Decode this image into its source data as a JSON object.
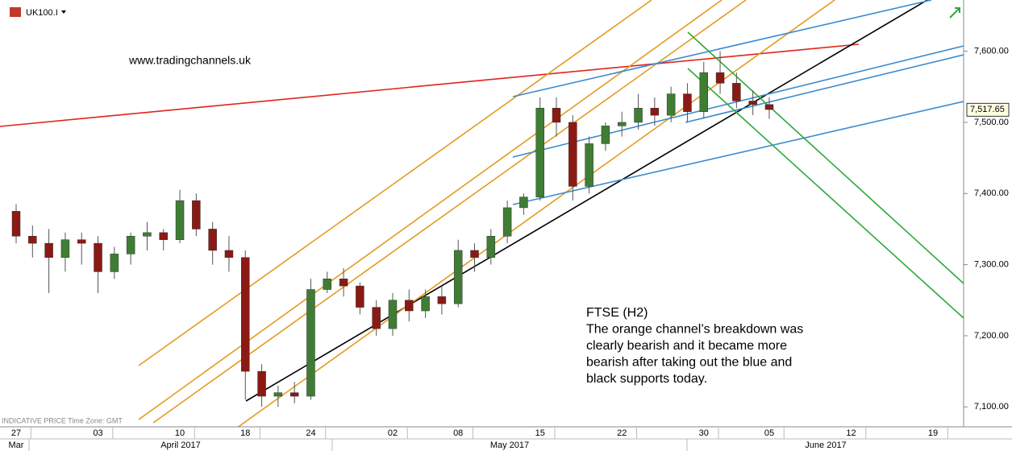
{
  "chart_data": {
    "type": "candlestick",
    "symbol": "UK100.I",
    "watermark": "www.tradingchannels.uk",
    "footer_note": "INDICATIVE PRICE   Time Zone: GMT",
    "annotation": [
      "FTSE (H2)",
      "The orange channel’s breakdown was",
      "clearly bearish and it became more",
      "bearish after taking out the blue and",
      "black supports today."
    ],
    "categories": [
      "27",
      null,
      null,
      null,
      null,
      "03",
      null,
      null,
      null,
      null,
      "10",
      null,
      null,
      null,
      "18",
      null,
      null,
      null,
      "24",
      null,
      null,
      null,
      null,
      "02",
      null,
      null,
      null,
      "08",
      null,
      null,
      null,
      null,
      "15",
      null,
      null,
      null,
      null,
      "22",
      null,
      null,
      null,
      null,
      "30",
      null,
      null,
      null,
      "05",
      null,
      null,
      null,
      null,
      "12",
      null,
      null,
      null,
      null,
      "19",
      null,
      null,
      null
    ],
    "month_labels": [
      "Mar",
      "April 2017",
      "May 2017",
      "June 2017"
    ],
    "open": [
      7375,
      7340,
      7330,
      7310,
      7335,
      7330,
      7290,
      7315,
      7340,
      7345,
      7335,
      7390,
      7350,
      7320,
      7310,
      7150,
      7115,
      7120,
      7115,
      7265,
      7280,
      7270,
      7240,
      7210,
      7250,
      7235,
      7255,
      7245,
      7320,
      7310,
      7340,
      7380,
      7395,
      7520,
      7500,
      7410,
      7470,
      7495,
      7500,
      7520,
      7510,
      7540,
      7515,
      7570,
      7555,
      7530,
      7525,
      null,
      null,
      null,
      null,
      null,
      null,
      null,
      null,
      null,
      null,
      null,
      null,
      null
    ],
    "high": [
      7385,
      7355,
      7350,
      7345,
      7345,
      7340,
      7325,
      7345,
      7360,
      7350,
      7405,
      7400,
      7360,
      7340,
      7320,
      7160,
      7130,
      7135,
      7280,
      7290,
      7295,
      7275,
      7250,
      7260,
      7265,
      7265,
      7270,
      7335,
      7330,
      7350,
      7390,
      7400,
      7535,
      7535,
      7510,
      7480,
      7500,
      7515,
      7540,
      7535,
      7550,
      7555,
      7585,
      7600,
      7570,
      7545,
      7535,
      null,
      null,
      null,
      null,
      null,
      null,
      null,
      null,
      null,
      null,
      null,
      null,
      null
    ],
    "low": [
      7330,
      7310,
      7260,
      7290,
      7300,
      7260,
      7280,
      7300,
      7320,
      7320,
      7330,
      7340,
      7300,
      7290,
      7110,
      7100,
      7100,
      7105,
      7110,
      7260,
      7255,
      7230,
      7200,
      7200,
      7220,
      7225,
      7230,
      7240,
      7290,
      7300,
      7330,
      7370,
      7390,
      7480,
      7390,
      7400,
      7460,
      7480,
      7490,
      7495,
      7500,
      7500,
      7505,
      7540,
      7520,
      7510,
      7505,
      null,
      null,
      null,
      null,
      null,
      null,
      null,
      null,
      null,
      null,
      null,
      null,
      null
    ],
    "close": [
      7340,
      7330,
      7310,
      7335,
      7330,
      7290,
      7315,
      7340,
      7345,
      7335,
      7390,
      7350,
      7320,
      7310,
      7150,
      7115,
      7120,
      7115,
      7265,
      7280,
      7270,
      7240,
      7210,
      7250,
      7235,
      7255,
      7245,
      7320,
      7310,
      7340,
      7380,
      7395,
      7520,
      7500,
      7410,
      7470,
      7495,
      7500,
      7520,
      7510,
      7540,
      7515,
      7570,
      7555,
      7530,
      7525,
      7518,
      null,
      null,
      null,
      null,
      null,
      null,
      null,
      null,
      null,
      null,
      null,
      null,
      null
    ],
    "up_color": "#3f7d34",
    "down_color": "#8b1a14",
    "ylim": [
      7072,
      7672
    ],
    "yticks": [
      {
        "value": 7100,
        "label": "7,100.00"
      },
      {
        "value": 7200,
        "label": "7,200.00"
      },
      {
        "value": 7300,
        "label": "7,300.00"
      },
      {
        "value": 7400,
        "label": "7,400.00"
      },
      {
        "value": 7500,
        "label": "7,500.00"
      },
      {
        "value": 7600,
        "label": "7,600.00"
      }
    ],
    "last_price": {
      "value": 7517.65,
      "label": "7,517.65"
    }
  }
}
